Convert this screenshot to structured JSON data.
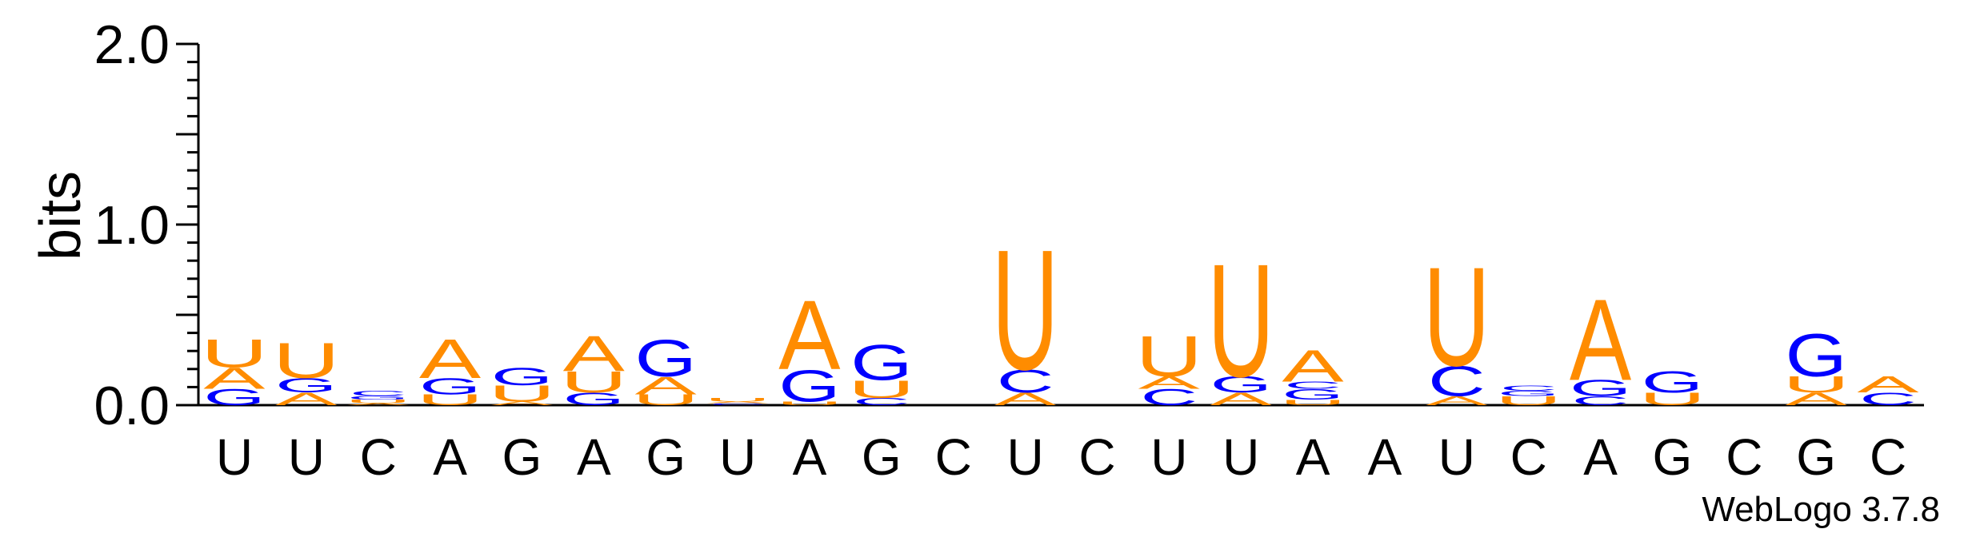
{
  "chart_data": {
    "type": "sequence-logo",
    "ylabel": "bits",
    "ylim": [
      0,
      2.0
    ],
    "yticks": [
      "0.0",
      "1.0",
      "2.0"
    ],
    "grid": false,
    "credit": "WebLogo 3.7.8",
    "colors": {
      "A": "#ff8c00",
      "U": "#ff8c00",
      "G": "#0000ff",
      "C": "#0000ff"
    },
    "positions": [
      {
        "label": "U",
        "stack": [
          [
            "G",
            0.09
          ],
          [
            "A",
            0.12
          ],
          [
            "U",
            0.16
          ]
        ]
      },
      {
        "label": "U",
        "stack": [
          [
            "A",
            0.07
          ],
          [
            "G",
            0.08
          ],
          [
            "U",
            0.2
          ]
        ]
      },
      {
        "label": "C",
        "stack": [
          [
            "A",
            0.01
          ],
          [
            "U",
            0.02
          ],
          [
            "G",
            0.02
          ],
          [
            "C",
            0.03
          ]
        ]
      },
      {
        "label": "A",
        "stack": [
          [
            "U",
            0.06
          ],
          [
            "G",
            0.09
          ],
          [
            "A",
            0.22
          ]
        ]
      },
      {
        "label": "G",
        "stack": [
          [
            "A",
            0.02
          ],
          [
            "U",
            0.09
          ],
          [
            "G",
            0.1
          ]
        ]
      },
      {
        "label": "A",
        "stack": [
          [
            "G",
            0.07
          ],
          [
            "U",
            0.12
          ],
          [
            "A",
            0.2
          ]
        ]
      },
      {
        "label": "G",
        "stack": [
          [
            "U",
            0.06
          ],
          [
            "A",
            0.1
          ],
          [
            "G",
            0.21
          ]
        ]
      },
      {
        "label": "U",
        "stack": [
          [
            "C",
            0.01
          ],
          [
            "A",
            0.01
          ],
          [
            "U",
            0.02
          ]
        ]
      },
      {
        "label": "A",
        "stack": [
          [
            "U",
            0.02
          ],
          [
            "G",
            0.18
          ],
          [
            "A",
            0.39
          ]
        ]
      },
      {
        "label": "G",
        "stack": [
          [
            "C",
            0.04
          ],
          [
            "U",
            0.1
          ],
          [
            "G",
            0.2
          ]
        ]
      },
      {
        "label": "C",
        "stack": []
      },
      {
        "label": "U",
        "stack": [
          [
            "A",
            0.07
          ],
          [
            "C",
            0.13
          ],
          [
            "U",
            0.68
          ]
        ]
      },
      {
        "label": "C",
        "stack": []
      },
      {
        "label": "U",
        "stack": [
          [
            "C",
            0.09
          ],
          [
            "A",
            0.07
          ],
          [
            "U",
            0.23
          ]
        ]
      },
      {
        "label": "U",
        "stack": [
          [
            "A",
            0.07
          ],
          [
            "G",
            0.09
          ],
          [
            "U",
            0.64
          ]
        ]
      },
      {
        "label": "A",
        "stack": [
          [
            "U",
            0.03
          ],
          [
            "G",
            0.06
          ],
          [
            "C",
            0.04
          ],
          [
            "A",
            0.18
          ]
        ]
      },
      {
        "label": "A",
        "stack": []
      },
      {
        "label": "U",
        "stack": [
          [
            "A",
            0.05
          ],
          [
            "C",
            0.17
          ],
          [
            "U",
            0.56
          ]
        ]
      },
      {
        "label": "C",
        "stack": [
          [
            "U",
            0.05
          ],
          [
            "G",
            0.03
          ],
          [
            "C",
            0.03
          ]
        ]
      },
      {
        "label": "A",
        "stack": [
          [
            "C",
            0.05
          ],
          [
            "G",
            0.09
          ],
          [
            "A",
            0.46
          ]
        ]
      },
      {
        "label": "G",
        "stack": [
          [
            "U",
            0.07
          ],
          [
            "G",
            0.12
          ]
        ]
      },
      {
        "label": "C",
        "stack": []
      },
      {
        "label": "G",
        "stack": [
          [
            "A",
            0.07
          ],
          [
            "U",
            0.09
          ],
          [
            "G",
            0.24
          ]
        ]
      },
      {
        "label": "C",
        "stack": [
          [
            "C",
            0.07
          ],
          [
            "A",
            0.09
          ]
        ]
      }
    ]
  }
}
